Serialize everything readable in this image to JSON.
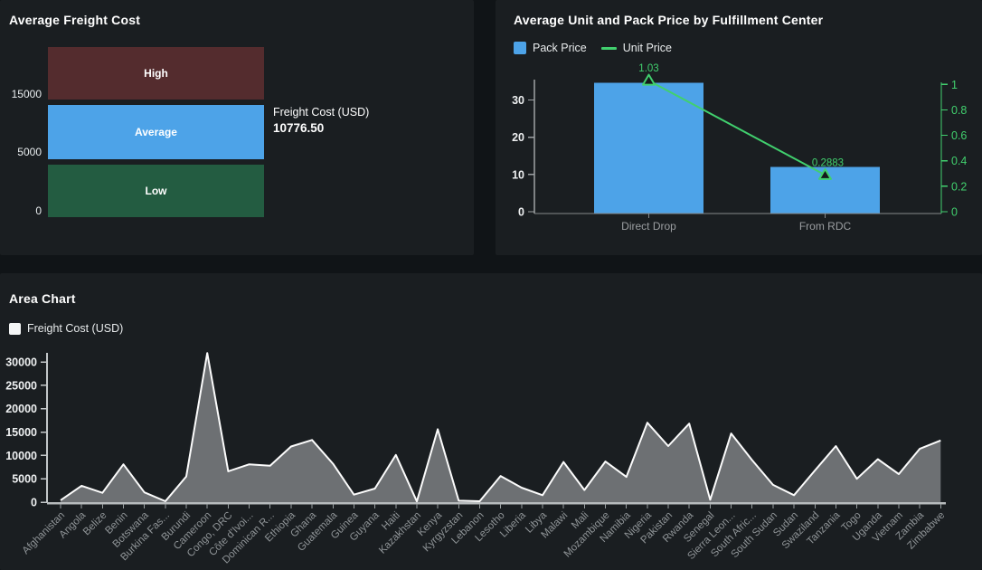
{
  "page": {
    "bg": "#101417",
    "panel_bg": "#1a1e21"
  },
  "chart_data": [
    {
      "id": "freight-gauge",
      "type": "bar",
      "title": "Average Freight Cost",
      "bands": [
        {
          "label": "High",
          "range": [
            15000,
            20000
          ],
          "color": "#542c2e"
        },
        {
          "label": "Average",
          "range": [
            5000,
            15000
          ],
          "color": "#4da3e8"
        },
        {
          "label": "Low",
          "range": [
            0,
            5000
          ],
          "color": "#235c41"
        }
      ],
      "axis_ticks": [
        "15000",
        "5000",
        "0"
      ],
      "value_label": "Freight Cost (USD)",
      "value": 10776.5,
      "value_display": "10776.50"
    },
    {
      "id": "price-combo",
      "type": "bar",
      "title": "Average Unit and Pack Price by Fulfillment Center",
      "categories": [
        "Direct Drop",
        "From RDC"
      ],
      "series": [
        {
          "name": "Pack Price",
          "type": "bar",
          "axis": "left",
          "values": [
            34.6,
            12
          ],
          "color": "#4da3e8"
        },
        {
          "name": "Unit Price",
          "type": "line",
          "axis": "right",
          "values": [
            1.03,
            0.2883
          ],
          "labels": [
            "1.03",
            "0.2883"
          ],
          "color": "#41d06e"
        }
      ],
      "left_axis": {
        "ticks": [
          0,
          10,
          20,
          30
        ],
        "max": 35.4
      },
      "right_axis": {
        "ticks": [
          0,
          0.2,
          0.4,
          0.6,
          0.8,
          1
        ],
        "max": 1.04
      },
      "legend_position": "top-left",
      "grid": false
    },
    {
      "id": "area-chart",
      "type": "area",
      "title": "Area Chart",
      "legend": [
        "Freight Cost (USD)"
      ],
      "legend_color": "#f4f6f6",
      "line_color": "#fcfcfc",
      "fill_color": "#6d7073",
      "yticks": [
        0,
        5000,
        10000,
        15000,
        20000,
        25000,
        30000
      ],
      "ylim": [
        0,
        32000
      ],
      "xlabel": "",
      "ylabel": "",
      "categories": [
        "Afghanistan",
        "Angola",
        "Belize",
        "Benin",
        "Botswana",
        "Burkina Fas...",
        "Burundi",
        "Cameroon",
        "Congo, DRC",
        "Côte d'Ivoi...",
        "Dominican R...",
        "Ethiopia",
        "Ghana",
        "Guatemala",
        "Guinea",
        "Guyana",
        "Haiti",
        "Kazakhstan",
        "Kenya",
        "Kyrgyzstan",
        "Lebanon",
        "Lesotho",
        "Liberia",
        "Libya",
        "Malawi",
        "Mali",
        "Mozambique",
        "Namibia",
        "Nigeria",
        "Pakistan",
        "Rwanda",
        "Senegal",
        "Sierra Leon...",
        "South Afric...",
        "South Sudan",
        "Sudan",
        "Swaziland",
        "Tanzania",
        "Togo",
        "Uganda",
        "Vietnam",
        "Zambia",
        "Zimbabwe"
      ],
      "values": [
        400,
        3500,
        2000,
        8100,
        2100,
        200,
        5500,
        31900,
        6600,
        8100,
        7800,
        11900,
        13300,
        8200,
        1600,
        2900,
        10100,
        150,
        15600,
        300,
        200,
        5600,
        3100,
        1500,
        8600,
        2600,
        8700,
        5400,
        17000,
        12000,
        16800,
        500,
        14700,
        9000,
        3700,
        1500,
        6800,
        12000,
        5000,
        9200,
        6000,
        11400,
        13200
      ]
    }
  ]
}
